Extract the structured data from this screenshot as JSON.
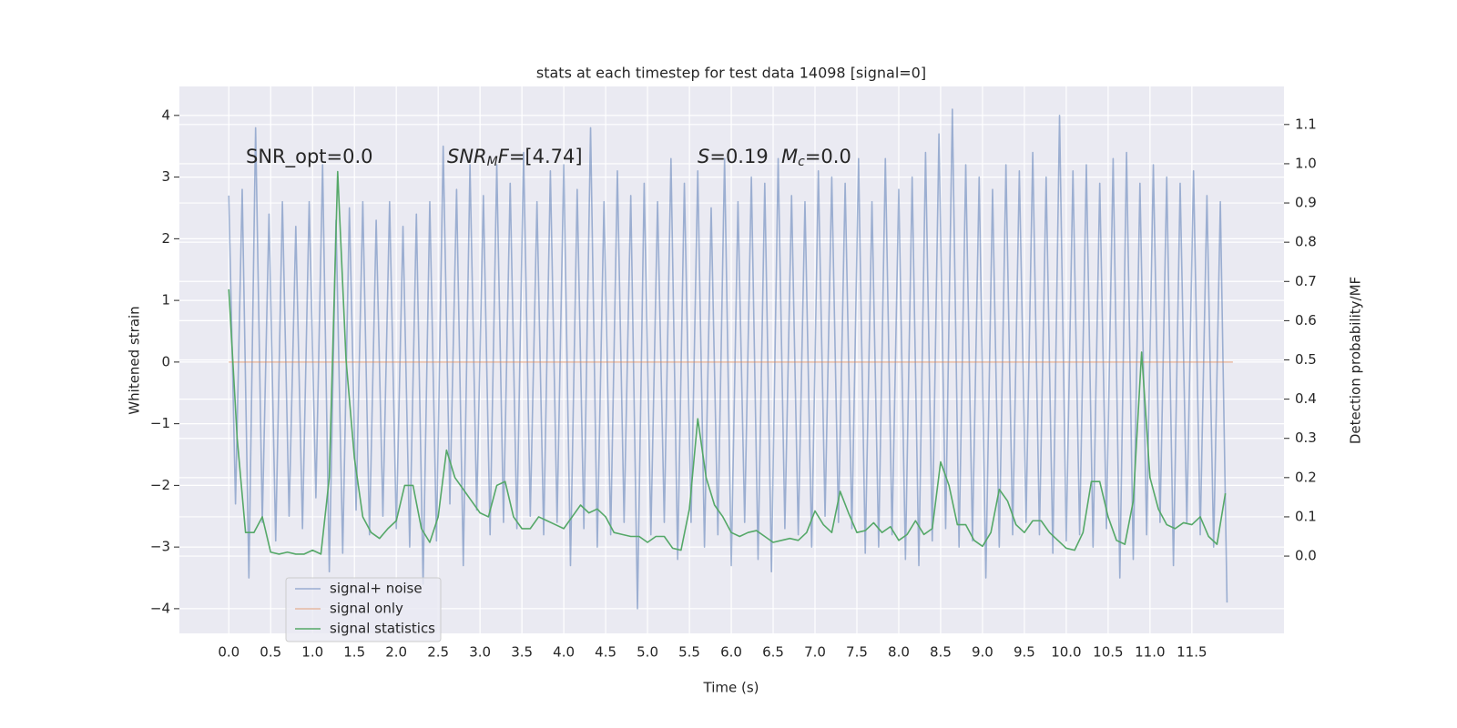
{
  "chart_data": {
    "type": "line",
    "title": "stats at each timestep for test data 14098 [signal=0]",
    "xlabel": "Time (s)",
    "ylabel": "Whitened strain",
    "y2label": "Detection probability/MF",
    "annotations": [
      {
        "parts": [
          {
            "text": "SNR_opt=0.0",
            "style": "normal"
          }
        ]
      },
      {
        "parts": [
          {
            "text": "SNR",
            "style": "italic"
          },
          {
            "text": "M",
            "style": "sub"
          },
          {
            "text": "F",
            "style": "italic"
          },
          {
            "text": "=[4.74]",
            "style": "normal"
          }
        ]
      },
      {
        "parts": [
          {
            "text": "S",
            "style": "italic"
          },
          {
            "text": "=0.19",
            "style": "normal"
          }
        ]
      },
      {
        "parts": [
          {
            "text": "M",
            "style": "italic"
          },
          {
            "text": "c",
            "style": "sub"
          },
          {
            "text": "=0.0",
            "style": "normal"
          }
        ]
      }
    ],
    "xlim": [
      -0.59,
      12.6
    ],
    "ylim": [
      -4.4,
      4.47
    ],
    "y2lim": [
      -0.197,
      1.197
    ],
    "xticks": [
      {
        "value": 0,
        "label": "0.0"
      },
      0.5,
      {
        "value": 1,
        "label": "1.0"
      },
      1.5,
      {
        "value": 2,
        "label": "2.0"
      },
      2.5,
      {
        "value": 3,
        "label": "3.0"
      },
      3.5,
      {
        "value": 4,
        "label": "4.0"
      },
      4.5,
      {
        "value": 5,
        "label": "5.0"
      },
      5.5,
      {
        "value": 6,
        "label": "6.0"
      },
      6.5,
      {
        "value": 7,
        "label": "7.0"
      },
      7.5,
      {
        "value": 8,
        "label": "8.0"
      },
      8.5,
      {
        "value": 9,
        "label": "9.0"
      },
      9.5,
      {
        "value": 10,
        "label": "10.0"
      },
      10.5,
      {
        "value": 11,
        "label": "11.0"
      },
      11.5
    ],
    "yticks": [
      {
        "value": -4,
        "label": "−4"
      },
      {
        "value": -3,
        "label": "−3"
      },
      {
        "value": -2,
        "label": "−2"
      },
      {
        "value": -1,
        "label": "−1"
      },
      0,
      1,
      2,
      3,
      4
    ],
    "y2ticks": [
      {
        "value": 0,
        "label": "0.0"
      },
      0.1,
      0.2,
      0.3,
      0.4,
      0.5,
      0.6,
      0.7,
      0.8,
      0.9,
      {
        "value": 1,
        "label": "1.0"
      },
      1.1
    ],
    "grid": true,
    "legend_loc": "lower left",
    "series": [
      {
        "name": "signal+ noise",
        "color": "#4c72b0",
        "opacity": 0.5,
        "x": [
          0,
          0.08,
          0.16,
          0.24,
          0.32,
          0.4,
          0.48,
          0.56,
          0.64,
          0.72,
          0.8,
          0.88,
          0.96,
          1.04,
          1.12,
          1.2,
          1.28,
          1.36,
          1.44,
          1.52,
          1.6,
          1.68,
          1.76,
          1.84,
          1.92,
          2,
          2.08,
          2.16,
          2.24,
          2.32,
          2.4,
          2.48,
          2.56,
          2.64,
          2.72,
          2.8,
          2.88,
          2.96,
          3.04,
          3.12,
          3.2,
          3.28,
          3.36,
          3.44,
          3.52,
          3.6,
          3.68,
          3.76,
          3.84,
          3.92,
          4,
          4.08,
          4.16,
          4.24,
          4.32,
          4.4,
          4.48,
          4.56,
          4.64,
          4.72,
          4.8,
          4.88,
          4.96,
          5.04,
          5.12,
          5.2,
          5.28,
          5.36,
          5.44,
          5.52,
          5.6,
          5.68,
          5.76,
          5.84,
          5.92,
          6,
          6.08,
          6.16,
          6.24,
          6.32,
          6.4,
          6.48,
          6.56,
          6.64,
          6.72,
          6.8,
          6.88,
          6.96,
          7.04,
          7.12,
          7.2,
          7.28,
          7.36,
          7.44,
          7.52,
          7.6,
          7.68,
          7.76,
          7.84,
          7.92,
          8,
          8.08,
          8.16,
          8.24,
          8.32,
          8.4,
          8.48,
          8.56,
          8.64,
          8.72,
          8.8,
          8.88,
          8.96,
          9.04,
          9.12,
          9.2,
          9.28,
          9.36,
          9.44,
          9.52,
          9.6,
          9.68,
          9.76,
          9.84,
          9.92,
          10,
          10.08,
          10.16,
          10.24,
          10.32,
          10.4,
          10.48,
          10.56,
          10.64,
          10.72,
          10.8,
          10.88,
          10.96,
          11.04,
          11.12,
          11.2,
          11.28,
          11.36,
          11.44,
          11.52,
          11.6,
          11.68,
          11.76,
          11.84,
          11.92
        ],
        "values": [
          2.7,
          -2.3,
          2.8,
          -3.5,
          3.8,
          -2.6,
          2.4,
          -2.9,
          2.6,
          -2.5,
          2.2,
          -2.7,
          2.6,
          -2.2,
          3.2,
          -3.4,
          2.3,
          -3.1,
          2.5,
          -2.4,
          2.6,
          -2.8,
          2.3,
          -2.5,
          2.6,
          -2.7,
          2.2,
          -3.0,
          2.4,
          -3.6,
          2.6,
          -2.9,
          3.5,
          -2.3,
          2.8,
          -3.3,
          3.2,
          -2.4,
          2.7,
          -2.8,
          3.2,
          -2.6,
          2.9,
          -2.7,
          3.4,
          -2.5,
          2.6,
          -2.8,
          3.1,
          -2.6,
          3.2,
          -3.3,
          2.8,
          -2.7,
          3.8,
          -3.0,
          2.6,
          -2.8,
          3.1,
          -2.6,
          2.7,
          -4.0,
          2.9,
          -2.8,
          2.6,
          -2.6,
          3.3,
          -3.2,
          2.9,
          -2.6,
          3.1,
          -3.0,
          2.5,
          -2.8,
          3.3,
          -3.3,
          2.6,
          -2.6,
          3.0,
          -3.2,
          2.9,
          -3.4,
          3.3,
          -2.7,
          2.7,
          -2.8,
          2.6,
          -3.0,
          3.1,
          -2.5,
          3.0,
          -2.6,
          2.9,
          -2.7,
          3.3,
          -3.1,
          2.6,
          -3.0,
          3.3,
          -2.8,
          2.8,
          -3.2,
          3.0,
          -3.3,
          3.4,
          -2.9,
          3.7,
          -2.7,
          4.1,
          -3.0,
          3.2,
          -2.9,
          3.0,
          -3.5,
          2.8,
          -3.0,
          3.2,
          -2.8,
          3.1,
          -2.6,
          3.4,
          -2.8,
          3.0,
          -3.1,
          4.0,
          -2.9,
          3.1,
          -2.8,
          3.2,
          -3.0,
          2.9,
          -2.7,
          3.3,
          -3.5,
          3.4,
          -3.2,
          2.9,
          -2.8,
          3.2,
          -2.6,
          3.0,
          -3.3,
          2.9,
          -2.6,
          3.1,
          -2.8,
          2.7,
          -3.0,
          2.6,
          -3.9
        ]
      },
      {
        "name": "signal only",
        "color": "#dd8452",
        "opacity": 0.5,
        "x": [
          0,
          11.99
        ],
        "values": [
          0,
          0
        ]
      },
      {
        "name": "signal statistics",
        "color": "#55a868",
        "opacity": 1,
        "axis": "y2",
        "x": [
          0,
          0.1,
          0.2,
          0.3,
          0.4,
          0.5,
          0.6,
          0.7,
          0.8,
          0.9,
          1,
          1.1,
          1.2,
          1.3,
          1.4,
          1.5,
          1.6,
          1.7,
          1.8,
          1.9,
          2,
          2.1,
          2.2,
          2.3,
          2.4,
          2.5,
          2.6,
          2.7,
          2.8,
          2.9,
          3,
          3.1,
          3.2,
          3.3,
          3.4,
          3.5,
          3.6,
          3.7,
          3.8,
          3.9,
          4,
          4.1,
          4.2,
          4.3,
          4.4,
          4.5,
          4.6,
          4.7,
          4.8,
          4.9,
          5,
          5.1,
          5.2,
          5.3,
          5.4,
          5.5,
          5.6,
          5.7,
          5.8,
          5.9,
          6,
          6.1,
          6.2,
          6.3,
          6.4,
          6.5,
          6.6,
          6.7,
          6.8,
          6.9,
          7,
          7.1,
          7.2,
          7.3,
          7.4,
          7.5,
          7.6,
          7.7,
          7.8,
          7.9,
          8,
          8.1,
          8.2,
          8.3,
          8.4,
          8.5,
          8.6,
          8.7,
          8.8,
          8.9,
          9,
          9.1,
          9.2,
          9.3,
          9.4,
          9.5,
          9.6,
          9.7,
          9.8,
          9.9,
          10,
          10.1,
          10.2,
          10.3,
          10.4,
          10.5,
          10.6,
          10.7,
          10.8,
          10.9,
          11,
          11.1,
          11.2,
          11.3,
          11.4,
          11.5,
          11.6,
          11.7,
          11.8,
          11.9
        ],
        "values": [
          0.68,
          0.3,
          0.06,
          0.06,
          0.1,
          0.01,
          0.005,
          0.01,
          0.005,
          0.005,
          0.015,
          0.005,
          0.2,
          0.98,
          0.5,
          0.25,
          0.1,
          0.06,
          0.045,
          0.07,
          0.09,
          0.18,
          0.18,
          0.07,
          0.035,
          0.1,
          0.27,
          0.2,
          0.17,
          0.14,
          0.11,
          0.1,
          0.18,
          0.19,
          0.1,
          0.07,
          0.07,
          0.1,
          0.09,
          0.08,
          0.07,
          0.1,
          0.13,
          0.11,
          0.12,
          0.1,
          0.06,
          0.055,
          0.05,
          0.05,
          0.035,
          0.05,
          0.05,
          0.02,
          0.015,
          0.12,
          0.35,
          0.2,
          0.13,
          0.1,
          0.06,
          0.05,
          0.06,
          0.065,
          0.05,
          0.035,
          0.04,
          0.045,
          0.04,
          0.06,
          0.115,
          0.08,
          0.06,
          0.165,
          0.11,
          0.06,
          0.065,
          0.085,
          0.06,
          0.075,
          0.04,
          0.055,
          0.09,
          0.055,
          0.07,
          0.24,
          0.18,
          0.08,
          0.08,
          0.04,
          0.025,
          0.06,
          0.17,
          0.14,
          0.08,
          0.06,
          0.09,
          0.09,
          0.06,
          0.04,
          0.02,
          0.015,
          0.06,
          0.19,
          0.19,
          0.1,
          0.04,
          0.03,
          0.14,
          0.52,
          0.2,
          0.12,
          0.08,
          0.07,
          0.085,
          0.08,
          0.1,
          0.05,
          0.03,
          0.16
        ]
      }
    ]
  }
}
